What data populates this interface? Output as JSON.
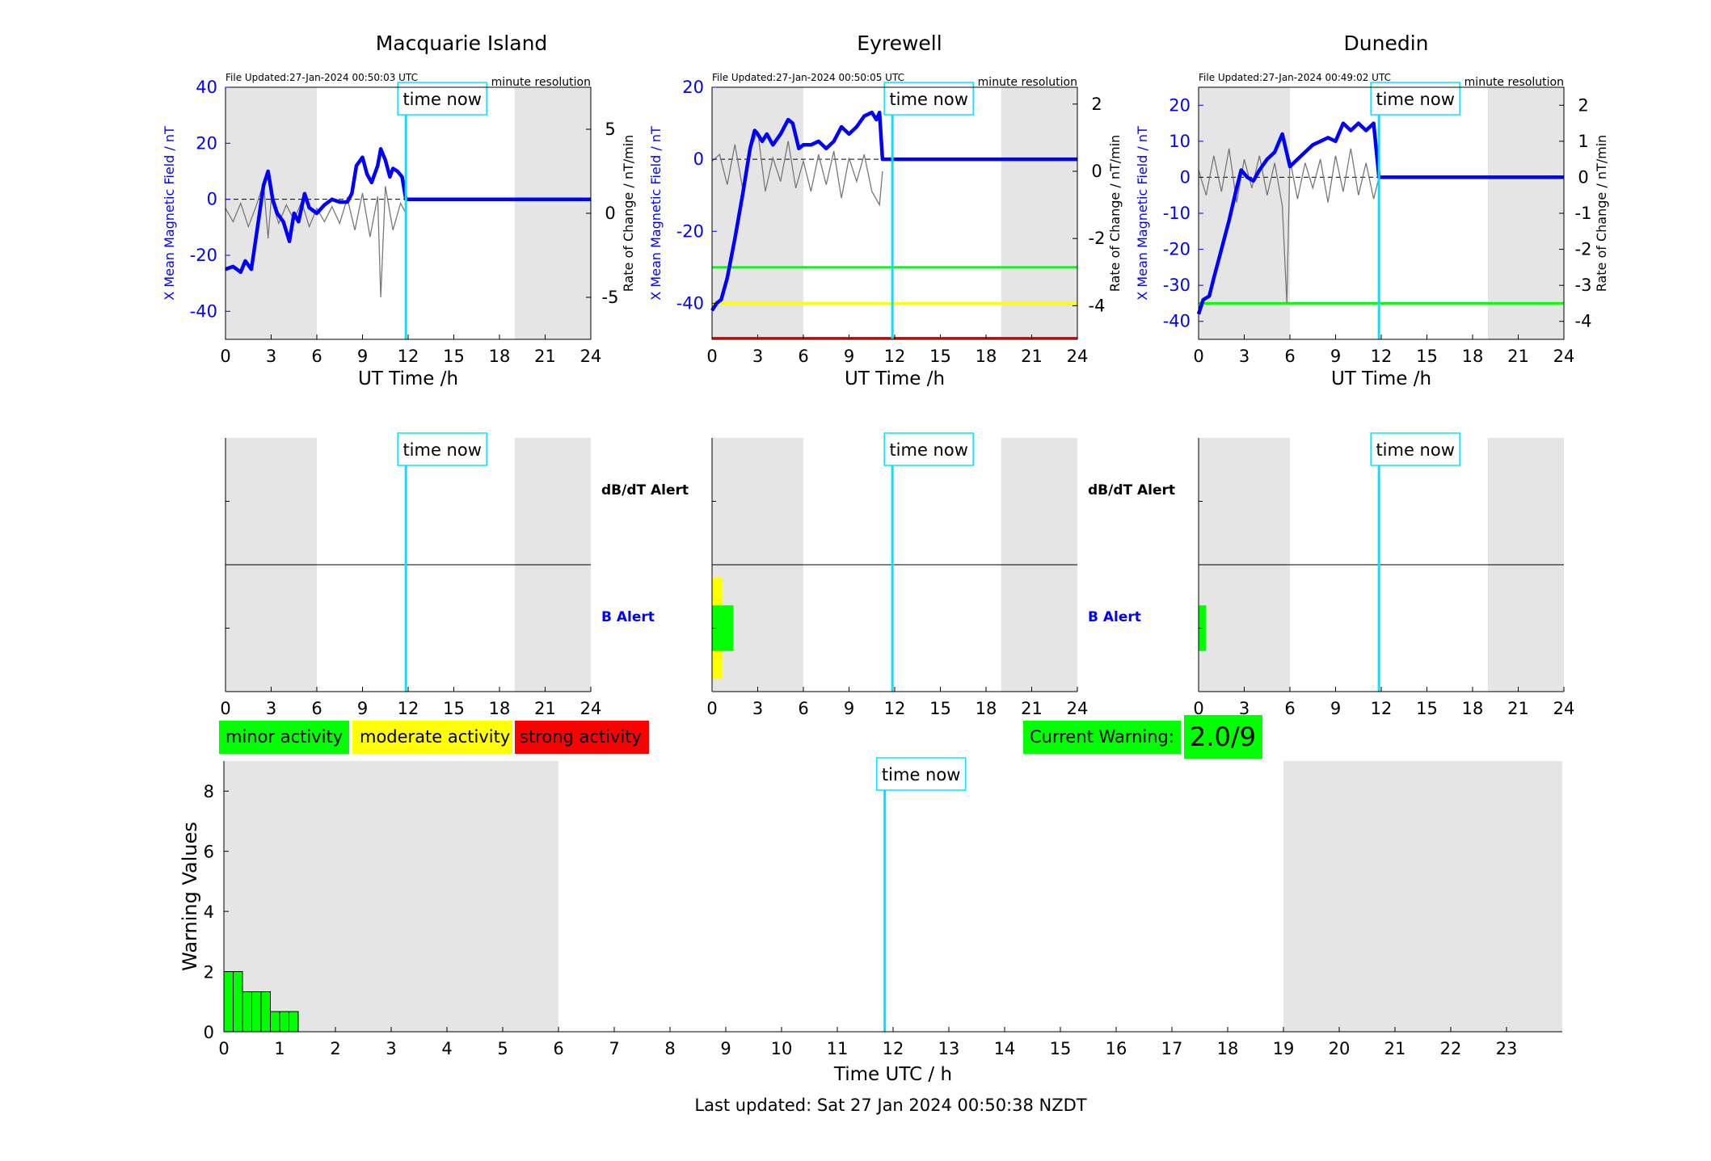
{
  "stations": [
    {
      "name": "Macquarie Island",
      "file_updated": "File Updated:27-Jan-2024 00:50:03 UTC",
      "resolution": "minute resolution",
      "left_ticks": [
        "40",
        "20",
        "0",
        "-20",
        "-40"
      ],
      "right_ticks": [
        "5",
        "0",
        "-5"
      ]
    },
    {
      "name": "Eyrewell",
      "file_updated": "File Updated:27-Jan-2024 00:50:05 UTC",
      "resolution": "minute resolution",
      "left_ticks": [
        "20",
        "0",
        "-20",
        "-40"
      ],
      "right_ticks": [
        "2",
        "0",
        "-2",
        "-4"
      ]
    },
    {
      "name": "Dunedin",
      "file_updated": "File Updated:27-Jan-2024 00:49:02 UTC",
      "resolution": "minute resolution",
      "left_ticks": [
        "20",
        "10",
        "0",
        "-10",
        "-20",
        "-30",
        "-40"
      ],
      "right_ticks": [
        "2",
        "1",
        "0",
        "-1",
        "-2",
        "-3",
        "-4"
      ]
    }
  ],
  "labels": {
    "left_axis": "X Mean Magnetic Field / nT",
    "right_axis": "Rate of Change / nT/min",
    "ut_time": "UT Time /h",
    "time_now": "time now",
    "dbdt_alert": "dB/dT Alert",
    "b_alert": "B Alert",
    "warning_values": "Warning Values",
    "time_utc": "Time UTC / h",
    "last_updated": "Last updated: Sat 27 Jan 2024 00:50:38 NZDT"
  },
  "x_ticks": [
    "0",
    "3",
    "6",
    "9",
    "12",
    "15",
    "18",
    "21",
    "24"
  ],
  "bottom_x_ticks": [
    "0",
    "1",
    "2",
    "3",
    "4",
    "5",
    "6",
    "7",
    "8",
    "9",
    "10",
    "11",
    "12",
    "13",
    "14",
    "15",
    "16",
    "17",
    "18",
    "19",
    "20",
    "21",
    "22",
    "23"
  ],
  "bottom_y_ticks": [
    "0",
    "2",
    "4",
    "6",
    "8"
  ],
  "legend": {
    "minor": "minor activity",
    "moderate": "moderate activity",
    "strong": "strong activity"
  },
  "current_warning": {
    "label": "Current Warning:",
    "value": "2.0/9"
  },
  "colors": {
    "field": "#0000ff",
    "rate": "#777777",
    "now": "#00e5ff",
    "shade": "#e5e5e5",
    "green": "#00ff00",
    "yellow": "#ffff00",
    "red": "#ff0000"
  },
  "chart_data": [
    {
      "type": "line",
      "title": "Macquarie Island",
      "xlabel": "UT Time /h",
      "ylabel": "X Mean Magnetic Field / nT",
      "y2label": "Rate of Change / nT/min",
      "xlim": [
        0,
        24
      ],
      "ylim": [
        -50,
        40
      ],
      "y2lim": [
        -7.5,
        7.5
      ],
      "night_shading_hours": [
        [
          0,
          6
        ],
        [
          19,
          24
        ]
      ],
      "time_now": 11.85,
      "thresholds": [],
      "series": [
        {
          "name": "X Mean Magnetic Field",
          "axis": "left",
          "x": [
            0,
            0.5,
            1,
            1.3,
            1.7,
            2.1,
            2.5,
            2.8,
            3.1,
            3.4,
            3.8,
            4.2,
            4.5,
            4.8,
            5.2,
            5.5,
            6,
            6.5,
            7,
            7.5,
            8,
            8.3,
            8.6,
            9,
            9.3,
            9.6,
            10,
            10.2,
            10.5,
            10.8,
            11,
            11.3,
            11.6,
            11.85,
            24
          ],
          "y": [
            -25,
            -24,
            -26,
            -22,
            -25,
            -10,
            5,
            10,
            0,
            -5,
            -8,
            -15,
            -5,
            -8,
            2,
            -3,
            -5,
            -2,
            0,
            -1,
            -1,
            2,
            12,
            15,
            9,
            6,
            12,
            18,
            14,
            8,
            11,
            10,
            8,
            0,
            0
          ]
        },
        {
          "name": "Rate of Change",
          "axis": "right",
          "x": [
            0,
            0.5,
            1,
            1.5,
            2,
            2.5,
            2.8,
            3,
            3.5,
            4,
            4.5,
            5,
            5.5,
            6,
            6.5,
            7,
            7.5,
            8,
            8.5,
            9,
            9.5,
            10,
            10.2,
            10.5,
            11,
            11.5,
            11.85
          ],
          "y": [
            0.3,
            -0.5,
            0.6,
            -0.8,
            0.4,
            1.8,
            -1.5,
            0.8,
            -0.6,
            0.5,
            -0.4,
            0.7,
            -0.8,
            0.3,
            -0.5,
            0.4,
            -0.6,
            0.9,
            -1.0,
            1.2,
            -1.4,
            1.0,
            -5.0,
            1.6,
            -1.0,
            0.6,
            0
          ]
        }
      ]
    },
    {
      "type": "line",
      "title": "Eyrewell",
      "xlabel": "UT Time /h",
      "ylabel": "X Mean Magnetic Field / nT",
      "y2label": "Rate of Change / nT/min",
      "xlim": [
        0,
        24
      ],
      "ylim": [
        -50,
        20
      ],
      "y2lim": [
        -5,
        2.5
      ],
      "night_shading_hours": [
        [
          0,
          6
        ],
        [
          19,
          24
        ]
      ],
      "time_now": 11.85,
      "thresholds": [
        {
          "axis": "left",
          "value": -30,
          "color": "green"
        },
        {
          "axis": "left",
          "value": -40,
          "color": "yellow"
        },
        {
          "axis": "left",
          "value": -50,
          "color": "red"
        }
      ],
      "series": [
        {
          "name": "X Mean Magnetic Field",
          "axis": "left",
          "x": [
            0,
            0.3,
            0.6,
            1,
            1.5,
            2,
            2.5,
            2.8,
            3,
            3.3,
            3.6,
            4,
            4.5,
            5,
            5.3,
            5.7,
            6,
            6.5,
            7,
            7.5,
            8,
            8.5,
            9,
            9.5,
            10,
            10.5,
            10.8,
            11,
            11.2,
            24
          ],
          "y": [
            -42,
            -40,
            -39,
            -33,
            -22,
            -10,
            3,
            8,
            7,
            5,
            7,
            4,
            7,
            11,
            10,
            3,
            4,
            4,
            5,
            3,
            5,
            9,
            7,
            9,
            12,
            13,
            11,
            13,
            0,
            0
          ]
        },
        {
          "name": "Rate of Change",
          "axis": "right",
          "x": [
            0,
            0.5,
            1,
            1.5,
            2,
            2.5,
            3,
            3.5,
            4,
            4.5,
            5,
            5.5,
            6,
            6.5,
            7,
            7.5,
            8,
            8.5,
            9,
            9.5,
            10,
            10.5,
            11,
            11.2
          ],
          "y": [
            0.3,
            0.5,
            -0.4,
            0.8,
            -0.5,
            0.6,
            1.2,
            -0.6,
            0.4,
            -0.3,
            0.9,
            -0.5,
            0.3,
            -0.6,
            0.5,
            -0.4,
            0.6,
            -0.8,
            0.4,
            -0.3,
            0.5,
            -0.6,
            -1.0,
            0
          ]
        }
      ]
    },
    {
      "type": "line",
      "title": "Dunedin",
      "xlabel": "UT Time /h",
      "ylabel": "X Mean Magnetic Field / nT",
      "y2label": "Rate of Change / nT/min",
      "xlim": [
        0,
        24
      ],
      "ylim": [
        -45,
        25
      ],
      "y2lim": [
        -4.5,
        2.5
      ],
      "night_shading_hours": [
        [
          0,
          6
        ],
        [
          19,
          24
        ]
      ],
      "time_now": 11.85,
      "thresholds": [
        {
          "axis": "left",
          "value": -35,
          "color": "green"
        }
      ],
      "series": [
        {
          "name": "X Mean Magnetic Field",
          "axis": "left",
          "x": [
            0,
            0.3,
            0.7,
            1,
            1.5,
            2,
            2.5,
            2.8,
            3.2,
            3.6,
            4,
            4.5,
            5,
            5.5,
            6,
            6.5,
            7,
            7.5,
            8,
            8.5,
            9,
            9.5,
            10,
            10.5,
            11,
            11.5,
            11.85,
            24
          ],
          "y": [
            -38,
            -34,
            -33,
            -28,
            -20,
            -12,
            -3,
            2,
            0,
            -1,
            2,
            5,
            7,
            12,
            3,
            5,
            7,
            9,
            10,
            11,
            10,
            15,
            13,
            15,
            13,
            15,
            0,
            0
          ]
        },
        {
          "name": "Rate of Change",
          "axis": "right",
          "x": [
            0,
            0.5,
            1,
            1.5,
            2,
            2.5,
            3,
            3.5,
            4,
            4.5,
            5,
            5.5,
            5.8,
            6,
            6.5,
            7,
            7.5,
            8,
            8.5,
            9,
            9.5,
            10,
            10.5,
            11,
            11.5,
            11.85
          ],
          "y": [
            0.2,
            -0.5,
            0.6,
            -0.4,
            0.8,
            -0.7,
            0.5,
            -0.3,
            0.6,
            -0.5,
            0.4,
            -0.8,
            -3.5,
            0.5,
            -0.6,
            0.4,
            -0.3,
            0.5,
            -0.7,
            0.6,
            -0.4,
            0.8,
            -0.5,
            0.4,
            -0.6,
            0
          ]
        }
      ]
    },
    {
      "type": "bar",
      "title": "",
      "xlabel": "Time UTC / h",
      "ylabel": "Warning Values",
      "xlim": [
        0,
        24
      ],
      "ylim": [
        0,
        9
      ],
      "night_shading_hours": [
        [
          0,
          6
        ],
        [
          19,
          24
        ]
      ],
      "time_now": 11.85,
      "bar_width_hours": 0.1667,
      "x": [
        0,
        0.1667,
        0.3333,
        0.5,
        0.6667,
        0.8333,
        1.0,
        1.1667
      ],
      "values": [
        2,
        2,
        1.33,
        1.33,
        1.33,
        0.67,
        0.67,
        0.67
      ]
    }
  ],
  "alert_panels": [
    {
      "station": "Macquarie Island",
      "b_alert_blocks": []
    },
    {
      "station": "Eyrewell",
      "b_alert_blocks": [
        {
          "start": 0,
          "end": 0.7,
          "level": "yellow",
          "half_height": 0.4
        },
        {
          "start": 0,
          "end": 1.4,
          "level": "green",
          "half_height": 0.18
        }
      ]
    },
    {
      "station": "Dunedin",
      "b_alert_blocks": [
        {
          "start": 0,
          "end": 0.5,
          "level": "green",
          "half_height": 0.18
        }
      ]
    }
  ]
}
